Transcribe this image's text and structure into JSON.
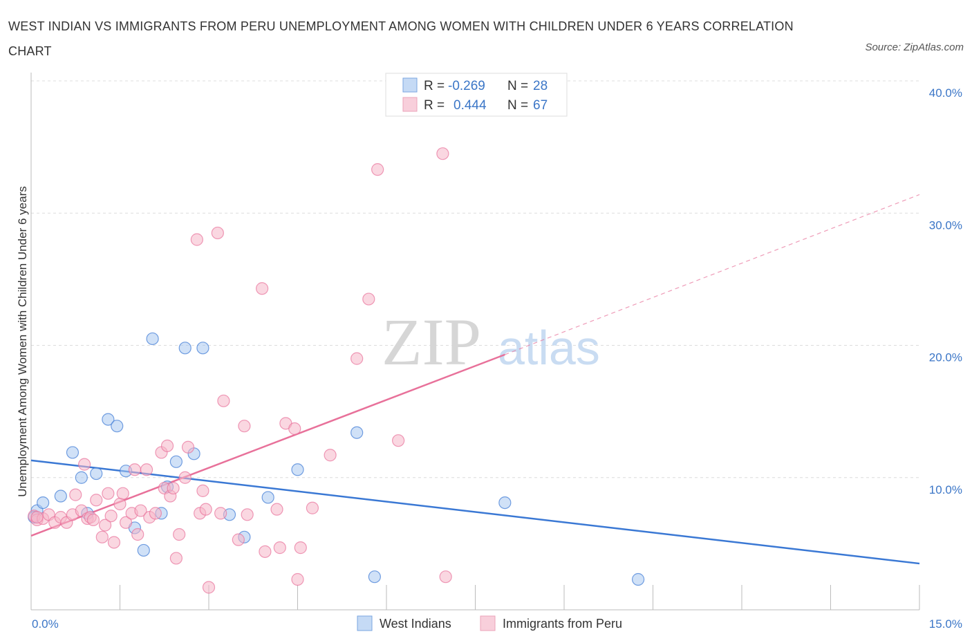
{
  "title": "WEST INDIAN VS IMMIGRANTS FROM PERU UNEMPLOYMENT AMONG WOMEN WITH CHILDREN UNDER 6 YEARS CORRELATION CHART",
  "source": "Source: ZipAtlas.com",
  "watermark": {
    "zip": "ZIP",
    "atlas": "atlas"
  },
  "legend": {
    "r_label": "R =",
    "n_label": "N =",
    "rows": [
      {
        "r": "-0.269",
        "n": "28",
        "color": "#a9c8f0"
      },
      {
        "r": "0.444",
        "n": "67",
        "color": "#f5b7c8"
      }
    ]
  },
  "bottom_legend": [
    "West Indians",
    "Immigrants from Peru"
  ],
  "chart_data": {
    "type": "scatter",
    "title": "WEST INDIAN VS IMMIGRANTS FROM PERU UNEMPLOYMENT AMONG WOMEN WITH CHILDREN UNDER 6 YEARS CORRELATION CHART",
    "xlabel": "",
    "ylabel": "Unemployment Among Women with Children Under 6 years",
    "xlim": [
      0,
      15
    ],
    "ylim": [
      0,
      40
    ],
    "x_tick_labels": [
      "0.0%",
      "15.0%"
    ],
    "y_tick_labels": [
      "10.0%",
      "20.0%",
      "30.0%",
      "40.0%"
    ],
    "y_ticks": [
      10,
      20,
      30,
      40
    ],
    "grid": true,
    "series": [
      {
        "name": "West Indians",
        "color": "#3a78d4",
        "fill": "#a9c8f0",
        "points": [
          [
            0.1,
            7.5
          ],
          [
            0.2,
            8.1
          ],
          [
            0.5,
            8.6
          ],
          [
            0.7,
            11.9
          ],
          [
            0.85,
            10.0
          ],
          [
            0.95,
            7.3
          ],
          [
            1.1,
            10.3
          ],
          [
            1.3,
            14.4
          ],
          [
            1.45,
            13.9
          ],
          [
            1.6,
            10.5
          ],
          [
            1.75,
            6.2
          ],
          [
            1.9,
            4.5
          ],
          [
            2.05,
            20.5
          ],
          [
            2.2,
            7.3
          ],
          [
            2.3,
            9.3
          ],
          [
            2.45,
            11.2
          ],
          [
            2.6,
            19.8
          ],
          [
            2.75,
            11.8
          ],
          [
            2.9,
            19.8
          ],
          [
            3.35,
            7.2
          ],
          [
            3.6,
            5.5
          ],
          [
            4.0,
            8.5
          ],
          [
            4.5,
            10.6
          ],
          [
            5.5,
            13.4
          ],
          [
            5.8,
            2.5
          ],
          [
            8.0,
            8.1
          ],
          [
            10.25,
            2.3
          ],
          [
            0.05,
            7.0
          ]
        ],
        "trend": {
          "x": [
            0,
            15
          ],
          "y": [
            11.3,
            3.5
          ]
        }
      },
      {
        "name": "Immigrants from Peru",
        "color": "#e8719a",
        "fill": "#f5b7c8",
        "points": [
          [
            0.05,
            7.1
          ],
          [
            0.1,
            6.8
          ],
          [
            0.2,
            6.9
          ],
          [
            0.3,
            7.2
          ],
          [
            0.4,
            6.6
          ],
          [
            0.5,
            7.0
          ],
          [
            0.6,
            6.6
          ],
          [
            0.7,
            7.2
          ],
          [
            0.75,
            8.7
          ],
          [
            0.85,
            7.5
          ],
          [
            0.9,
            11.0
          ],
          [
            0.95,
            6.9
          ],
          [
            1.0,
            7.0
          ],
          [
            1.05,
            6.8
          ],
          [
            1.1,
            8.3
          ],
          [
            1.2,
            5.5
          ],
          [
            1.25,
            6.4
          ],
          [
            1.3,
            8.8
          ],
          [
            1.35,
            7.1
          ],
          [
            1.4,
            5.1
          ],
          [
            1.5,
            8.0
          ],
          [
            1.55,
            8.8
          ],
          [
            1.6,
            6.6
          ],
          [
            1.7,
            7.3
          ],
          [
            1.75,
            10.6
          ],
          [
            1.8,
            5.7
          ],
          [
            1.85,
            7.5
          ],
          [
            1.95,
            10.6
          ],
          [
            2.0,
            7.0
          ],
          [
            2.1,
            7.3
          ],
          [
            2.2,
            11.9
          ],
          [
            2.25,
            9.2
          ],
          [
            2.3,
            12.4
          ],
          [
            2.35,
            8.6
          ],
          [
            2.4,
            9.2
          ],
          [
            2.45,
            3.9
          ],
          [
            2.5,
            5.7
          ],
          [
            2.6,
            10.0
          ],
          [
            2.65,
            12.3
          ],
          [
            2.8,
            28.0
          ],
          [
            2.85,
            7.3
          ],
          [
            2.9,
            9.0
          ],
          [
            2.95,
            7.6
          ],
          [
            3.0,
            1.7
          ],
          [
            3.15,
            28.5
          ],
          [
            3.2,
            7.3
          ],
          [
            3.25,
            15.8
          ],
          [
            3.5,
            5.3
          ],
          [
            3.6,
            13.9
          ],
          [
            3.65,
            7.2
          ],
          [
            3.9,
            24.3
          ],
          [
            3.95,
            4.4
          ],
          [
            4.15,
            7.6
          ],
          [
            4.2,
            4.7
          ],
          [
            4.3,
            14.1
          ],
          [
            4.45,
            13.7
          ],
          [
            4.5,
            2.3
          ],
          [
            4.55,
            4.7
          ],
          [
            4.75,
            7.7
          ],
          [
            5.05,
            11.7
          ],
          [
            5.5,
            19.0
          ],
          [
            5.7,
            23.5
          ],
          [
            5.85,
            33.3
          ],
          [
            6.2,
            12.8
          ],
          [
            6.95,
            34.5
          ],
          [
            7.0,
            2.5
          ],
          [
            0.1,
            7.0
          ]
        ],
        "trend": {
          "x": [
            0,
            8.0
          ],
          "y": [
            5.6,
            19.3
          ]
        },
        "trend_dashed": {
          "x": [
            8.0,
            15
          ],
          "y": [
            19.3,
            31.4
          ]
        }
      }
    ]
  }
}
